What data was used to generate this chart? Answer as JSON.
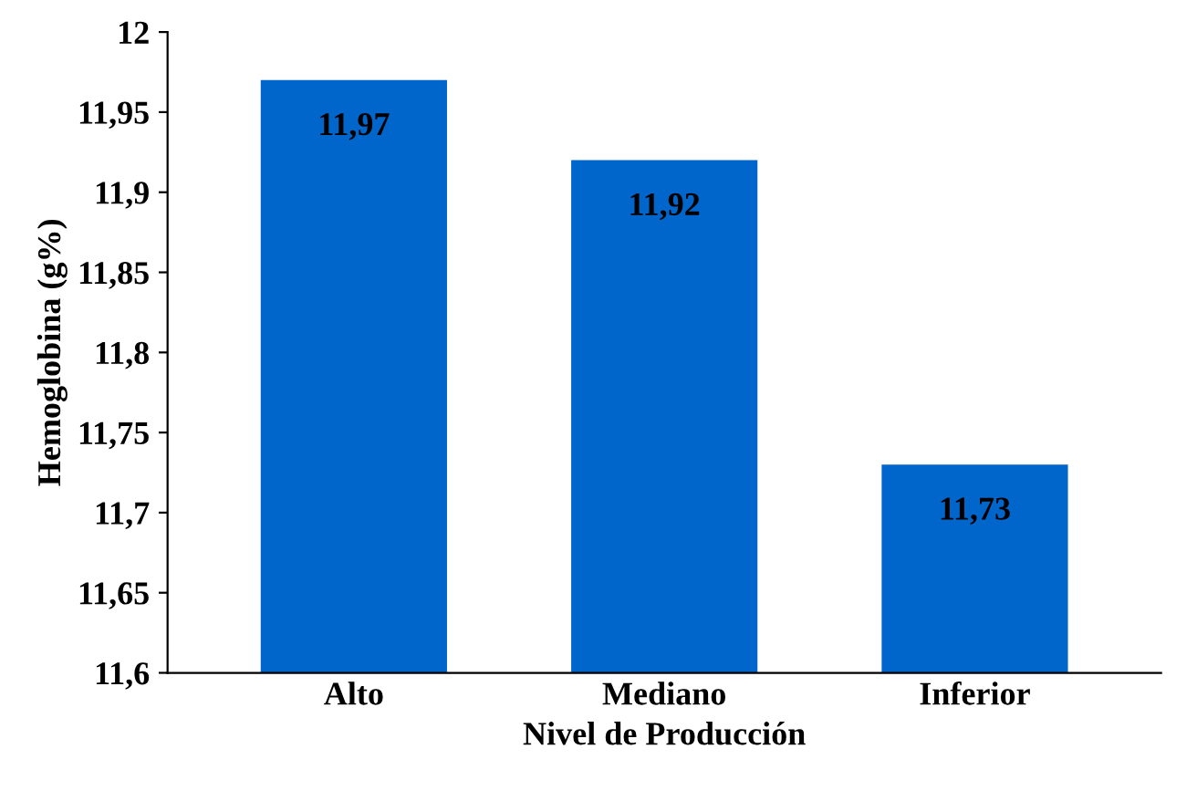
{
  "chart_data": {
    "type": "bar",
    "xlabel": "Nivel de Producción",
    "ylabel": "Hemoglobina (g%)",
    "categories": [
      "Alto",
      "Mediano",
      "Inferior"
    ],
    "values": [
      11.97,
      11.92,
      11.73
    ],
    "value_labels": [
      "11,97",
      "11,92",
      "11,73"
    ],
    "color": "#0066cc",
    "ylim": [
      11.6,
      12
    ],
    "yticks": [
      {
        "value": 11.6,
        "label": "11,6"
      },
      {
        "value": 11.65,
        "label": "11,65"
      },
      {
        "value": 11.7,
        "label": "11,7"
      },
      {
        "value": 11.75,
        "label": "11,75"
      },
      {
        "value": 11.8,
        "label": "11,8"
      },
      {
        "value": 11.85,
        "label": "11,85"
      },
      {
        "value": 11.9,
        "label": "11,9"
      },
      {
        "value": 11.95,
        "label": "11,95"
      },
      {
        "value": 12,
        "label": "12"
      }
    ],
    "grid": false,
    "legend": false
  }
}
